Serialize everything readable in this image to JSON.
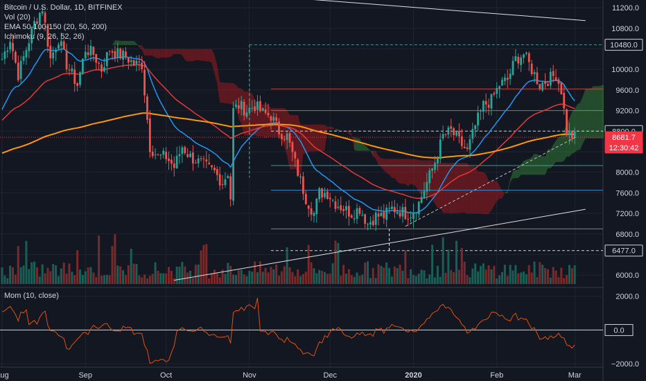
{
  "legend": {
    "title": "Bitcoin / U.S. Dollar, 1D, BITFINEX",
    "vol": "Vol (20)",
    "ema": "EMA 50-100-150 (20, 50, 200)",
    "ichimoku": "Ichimoku (9, 26, 52, 26)"
  },
  "momentum_label": "Mom (10, close)",
  "price_labels": [
    {
      "text": "10480.0",
      "value": 10480,
      "style": "box-dark"
    },
    {
      "text": "8800.0",
      "value": 8800,
      "style": "box-dark"
    },
    {
      "text": "8681.7",
      "value": 8681.7,
      "style": "box-red"
    },
    {
      "text": "12:30:42",
      "value": 8480,
      "style": "box-red"
    },
    {
      "text": "6477.0",
      "value": 6477,
      "style": "box-dark"
    }
  ],
  "momentum_axis_label": {
    "text": "0.0",
    "value": 0
  },
  "chart_data": {
    "type": "line",
    "title": "Bitcoin / U.S. Dollar, 1D, BITFINEX",
    "price_axis": {
      "ticks": [
        6000,
        6400,
        6800,
        7200,
        7600,
        8000,
        8400,
        8800,
        9200,
        9600,
        10000,
        10400,
        10800,
        11200
      ],
      "tick_labels": [
        "6000.0",
        "",
        "6800.0",
        "7200.0",
        "7600.0",
        "8000.0",
        "",
        "",
        "9200.0",
        "9600.0",
        "10000.0",
        "",
        "10800.0",
        "11200.0"
      ],
      "range": [
        5800,
        11350
      ]
    },
    "momentum_axis": {
      "ticks": [
        -2000,
        0,
        2000
      ],
      "tick_labels": [
        "−2000.0",
        "0.0",
        "2000.0"
      ],
      "range": [
        -2200,
        2400
      ]
    },
    "time_axis": {
      "labels": [
        "Aug",
        "Sep",
        "Oct",
        "Nov",
        "Dec",
        "2020",
        "Feb",
        "Mar"
      ],
      "positions": [
        0,
        31,
        61,
        92,
        122,
        153,
        184,
        213
      ]
    },
    "price_keyframes": [
      [
        0,
        10200
      ],
      [
        3,
        10600
      ],
      [
        6,
        9900
      ],
      [
        9,
        10400
      ],
      [
        12,
        10900
      ],
      [
        15,
        11200
      ],
      [
        18,
        10200
      ],
      [
        21,
        10600
      ],
      [
        24,
        10100
      ],
      [
        28,
        9700
      ],
      [
        31,
        10400
      ],
      [
        34,
        10300
      ],
      [
        37,
        10000
      ],
      [
        40,
        10400
      ],
      [
        43,
        10300
      ],
      [
        46,
        10250
      ],
      [
        49,
        10100
      ],
      [
        52,
        10100
      ],
      [
        55,
        8500
      ],
      [
        58,
        8300
      ],
      [
        61,
        8300
      ],
      [
        64,
        8100
      ],
      [
        67,
        8500
      ],
      [
        70,
        8300
      ],
      [
        73,
        8200
      ],
      [
        76,
        8100
      ],
      [
        79,
        8000
      ],
      [
        82,
        7800
      ],
      [
        84,
        8000
      ],
      [
        85,
        7500
      ],
      [
        86,
        9200
      ],
      [
        88,
        9300
      ],
      [
        91,
        9200
      ],
      [
        94,
        9300
      ],
      [
        97,
        9150
      ],
      [
        100,
        9100
      ],
      [
        103,
        8800
      ],
      [
        106,
        8700
      ],
      [
        110,
        8000
      ],
      [
        113,
        7500
      ],
      [
        116,
        7200
      ],
      [
        118,
        7600
      ],
      [
        121,
        7600
      ],
      [
        124,
        7400
      ],
      [
        127,
        7300
      ],
      [
        130,
        7200
      ],
      [
        133,
        7300
      ],
      [
        136,
        7000
      ],
      [
        139,
        7150
      ],
      [
        142,
        7150
      ],
      [
        145,
        7300
      ],
      [
        148,
        7250
      ],
      [
        150,
        7200
      ],
      [
        152,
        7200
      ],
      [
        155,
        7400
      ],
      [
        158,
        7800
      ],
      [
        161,
        8200
      ],
      [
        164,
        8700
      ],
      [
        167,
        8800
      ],
      [
        170,
        8600
      ],
      [
        173,
        8400
      ],
      [
        176,
        8900
      ],
      [
        179,
        9300
      ],
      [
        182,
        9400
      ],
      [
        185,
        9700
      ],
      [
        188,
        9800
      ],
      [
        191,
        10200
      ],
      [
        194,
        10300
      ],
      [
        197,
        10000
      ],
      [
        200,
        9700
      ],
      [
        203,
        9800
      ],
      [
        206,
        9900
      ],
      [
        208,
        9600
      ],
      [
        210,
        8800
      ],
      [
        212,
        8700
      ]
    ],
    "series": [
      {
        "name": "EMA 20",
        "period": 20,
        "color": "#2196f3"
      },
      {
        "name": "EMA 50",
        "period": 50,
        "color": "#e53935"
      },
      {
        "name": "EMA 200",
        "period": 200,
        "color": "#ff9800"
      },
      {
        "name": "Mom (10, close)",
        "period": 10,
        "color": "#e65100"
      }
    ],
    "ichimoku": {
      "conversion": 9,
      "base": 26,
      "span_b": 52,
      "displacement": 26,
      "bull_color": "#388e3c",
      "bear_color": "#b71c1c"
    },
    "horizontal_levels": [
      {
        "value": 10480,
        "color": "#4db6ac",
        "style": "dashed"
      },
      {
        "value": 9620,
        "color": "#f44336",
        "style": "solid"
      },
      {
        "value": 9200,
        "color": "#9e9d24",
        "style": "solid"
      },
      {
        "value": 8800,
        "color": "#ffffff",
        "style": "dashed"
      },
      {
        "value": 8130,
        "color": "#4db6ac",
        "style": "solid"
      },
      {
        "value": 7650,
        "color": "#42a5f5",
        "style": "solid"
      },
      {
        "value": 6900,
        "color": "#9e9e9e",
        "style": "solid"
      },
      {
        "value": 6477,
        "color": "#ffffff",
        "style": "dashed"
      }
    ],
    "trendlines": [
      {
        "from": [
          105,
          11400
        ],
        "to": [
          217,
          10950
        ],
        "color": "#e0e0e0"
      },
      {
        "from": [
          64,
          5900
        ],
        "to": [
          217,
          7280
        ],
        "color": "#e0e0e0"
      },
      {
        "from": [
          150,
          6950
        ],
        "to": [
          214,
          8700
        ],
        "color": "#bdbdbd"
      }
    ],
    "colors": {
      "up": "#26a69a",
      "down": "#ef5350",
      "vol_up": "#1b5e56",
      "vol_down": "#7a2a2a"
    }
  }
}
